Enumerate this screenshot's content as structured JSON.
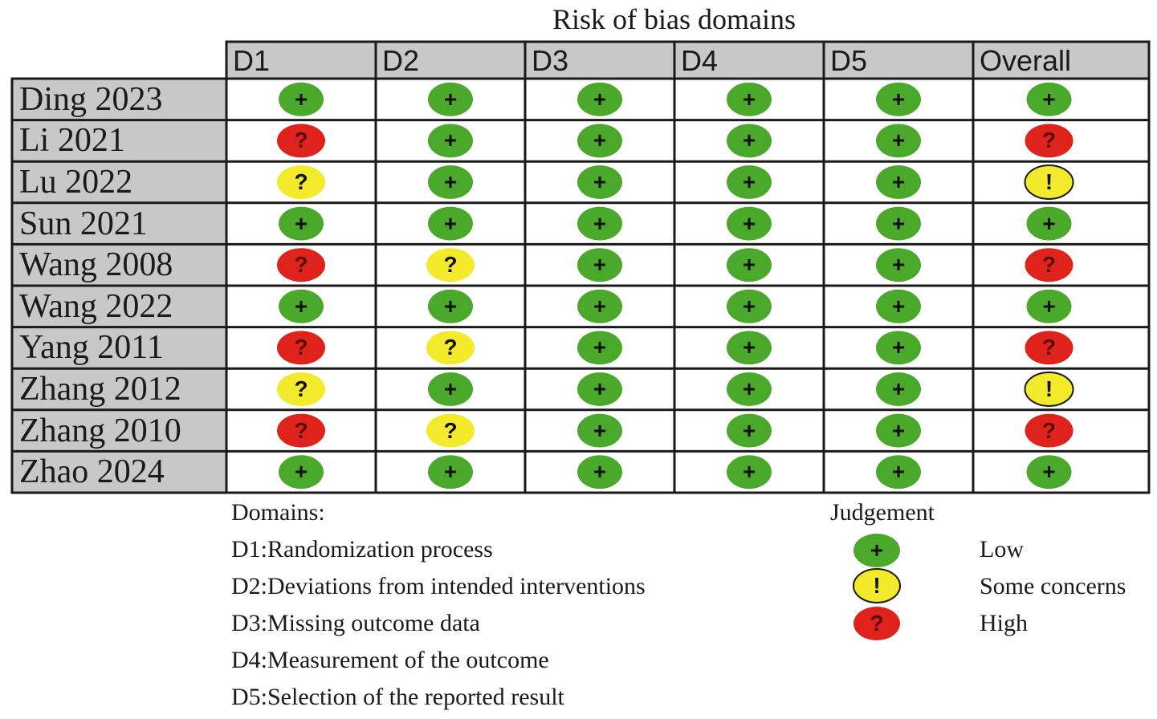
{
  "title": "Risk of bias domains",
  "chart_data": {
    "type": "table",
    "columns": [
      "D1",
      "D2",
      "D3",
      "D4",
      "D5",
      "Overall"
    ],
    "rows": [
      {
        "study": "Ding 2023",
        "judgements": [
          "low",
          "low",
          "low",
          "low",
          "low",
          "low"
        ]
      },
      {
        "study": "Li 2021",
        "judgements": [
          "high",
          "low",
          "low",
          "low",
          "low",
          "high"
        ]
      },
      {
        "study": "Lu 2022",
        "judgements": [
          "some",
          "low",
          "low",
          "low",
          "low",
          "some"
        ]
      },
      {
        "study": "Sun 2021",
        "judgements": [
          "low",
          "low",
          "low",
          "low",
          "low",
          "low"
        ]
      },
      {
        "study": "Wang 2008",
        "judgements": [
          "high",
          "some",
          "low",
          "low",
          "low",
          "high"
        ]
      },
      {
        "study": "Wang 2022",
        "judgements": [
          "low",
          "low",
          "low",
          "low",
          "low",
          "low"
        ]
      },
      {
        "study": "Yang 2011",
        "judgements": [
          "high",
          "some",
          "low",
          "low",
          "low",
          "high"
        ]
      },
      {
        "study": "Zhang 2012",
        "judgements": [
          "some",
          "low",
          "low",
          "low",
          "low",
          "some"
        ]
      },
      {
        "study": "Zhang 2010",
        "judgements": [
          "high",
          "some",
          "low",
          "low",
          "low",
          "high"
        ]
      },
      {
        "study": "Zhao 2024",
        "judgements": [
          "low",
          "low",
          "low",
          "low",
          "low",
          "low"
        ]
      }
    ]
  },
  "symbols": {
    "low": {
      "glyph": "+",
      "color": "#4aa82b"
    },
    "some": {
      "glyph": "!",
      "color": "#f2ea2a"
    },
    "high": {
      "glyph": "?",
      "color": "#e0221c"
    },
    "some_domain_glyph": "?"
  },
  "legend": {
    "domains_heading": "Domains:",
    "domains": [
      "D1:Randomization process",
      "D2:Deviations from intended interventions",
      "D3:Missing outcome data",
      "D4:Measurement of the outcome",
      "D5:Selection of the reported result"
    ],
    "judgement_heading": "Judgement",
    "judgements": [
      {
        "key": "low",
        "label": "Low"
      },
      {
        "key": "some",
        "label": "Some concerns"
      },
      {
        "key": "high",
        "label": "High"
      }
    ]
  }
}
